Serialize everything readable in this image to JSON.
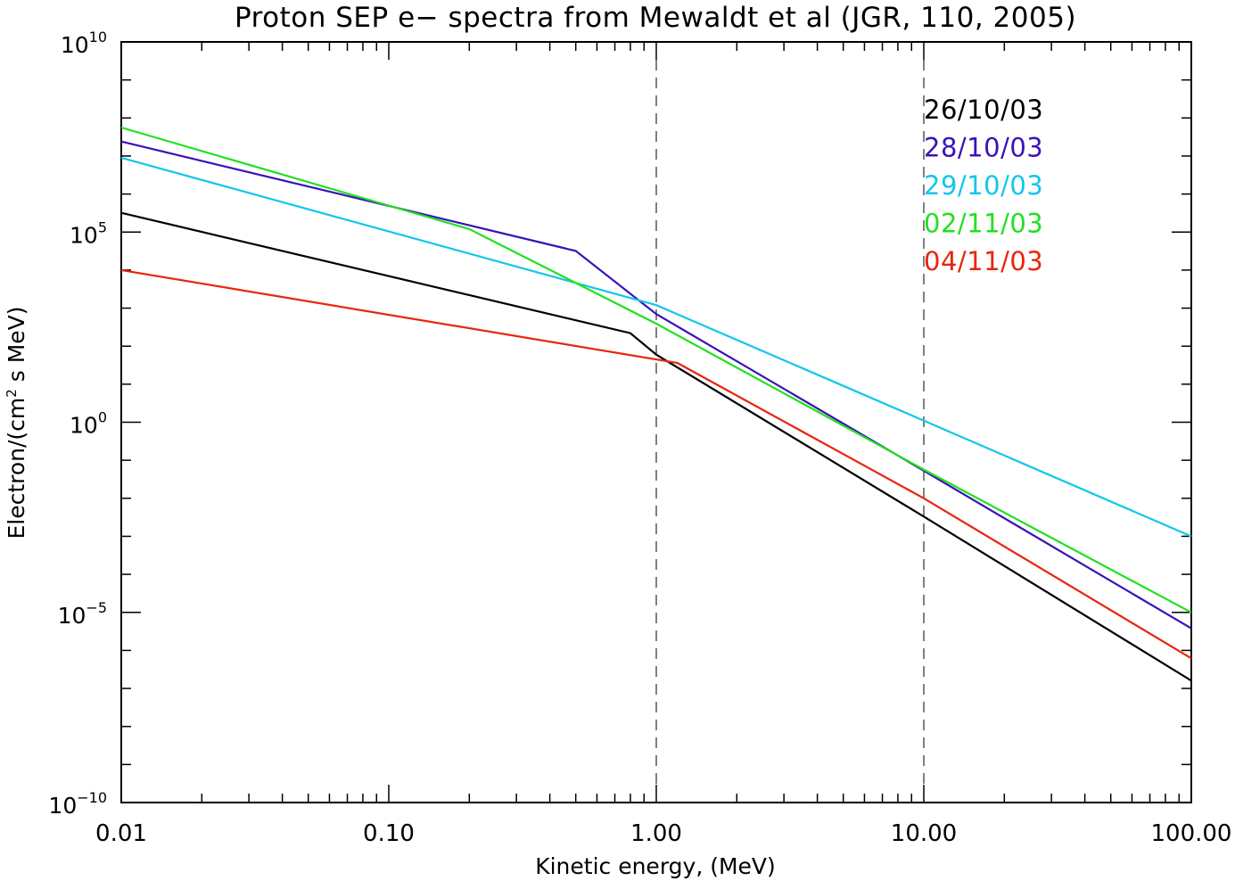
{
  "chart_data": {
    "type": "line",
    "title": "Proton SEP e− spectra from Mewaldt et al (JGR, 110, 2005)",
    "xlabel": "Kinetic energy, (MeV)",
    "ylabel_main": "Electron/(cm",
    "ylabel_sup": "2",
    "ylabel_tail": " s MeV)",
    "x_scale": "log",
    "y_scale": "log",
    "xlim": [
      0.01,
      100
    ],
    "ylim": [
      1e-10,
      10000000000.0
    ],
    "x_ticks": [
      {
        "value": 0.01,
        "label": "0.01"
      },
      {
        "value": 0.1,
        "label": "0.10"
      },
      {
        "value": 1,
        "label": "1.00"
      },
      {
        "value": 10,
        "label": "10.00"
      },
      {
        "value": 100,
        "label": "100.00"
      }
    ],
    "y_ticks": [
      {
        "value": 10000000000.0,
        "base": "10",
        "exp": "10"
      },
      {
        "value": 100000.0,
        "base": "10",
        "exp": "5"
      },
      {
        "value": 1,
        "base": "10",
        "exp": "0"
      },
      {
        "value": 1e-05,
        "base": "10",
        "exp": "−5"
      },
      {
        "value": 1e-10,
        "base": "10",
        "exp": "−10"
      }
    ],
    "reference_lines_x": [
      1,
      10
    ],
    "grid": false,
    "legend_position": "top-right",
    "series": [
      {
        "name": "26/10/03",
        "color": "#000000",
        "points": [
          [
            0.01,
            320000.0
          ],
          [
            0.8,
            220.0
          ],
          [
            1.0,
            60
          ],
          [
            10,
            0.0033
          ],
          [
            100,
            1.6e-07
          ]
        ]
      },
      {
        "name": "28/10/03",
        "color": "#3a12b8",
        "points": [
          [
            0.01,
            24000000.0
          ],
          [
            0.5,
            32000.0
          ],
          [
            1.0,
            700.0
          ],
          [
            10,
            0.053
          ],
          [
            100,
            3.8e-06
          ]
        ]
      },
      {
        "name": "29/10/03",
        "color": "#13c6ec",
        "points": [
          [
            0.01,
            9000000.0
          ],
          [
            1.0,
            1200.0
          ],
          [
            10,
            1.1
          ],
          [
            100,
            0.001
          ]
        ]
      },
      {
        "name": "02/11/03",
        "color": "#22e01f",
        "points": [
          [
            0.01,
            56000000.0
          ],
          [
            0.2,
            120000.0
          ],
          [
            1.0,
            390.0
          ],
          [
            10,
            0.057
          ],
          [
            100,
            1e-05
          ]
        ]
      },
      {
        "name": "04/11/03",
        "color": "#e8250d",
        "points": [
          [
            0.01,
            10000.0
          ],
          [
            1.2,
            36
          ],
          [
            10,
            0.01
          ],
          [
            100,
            6.2e-07
          ]
        ]
      }
    ]
  }
}
